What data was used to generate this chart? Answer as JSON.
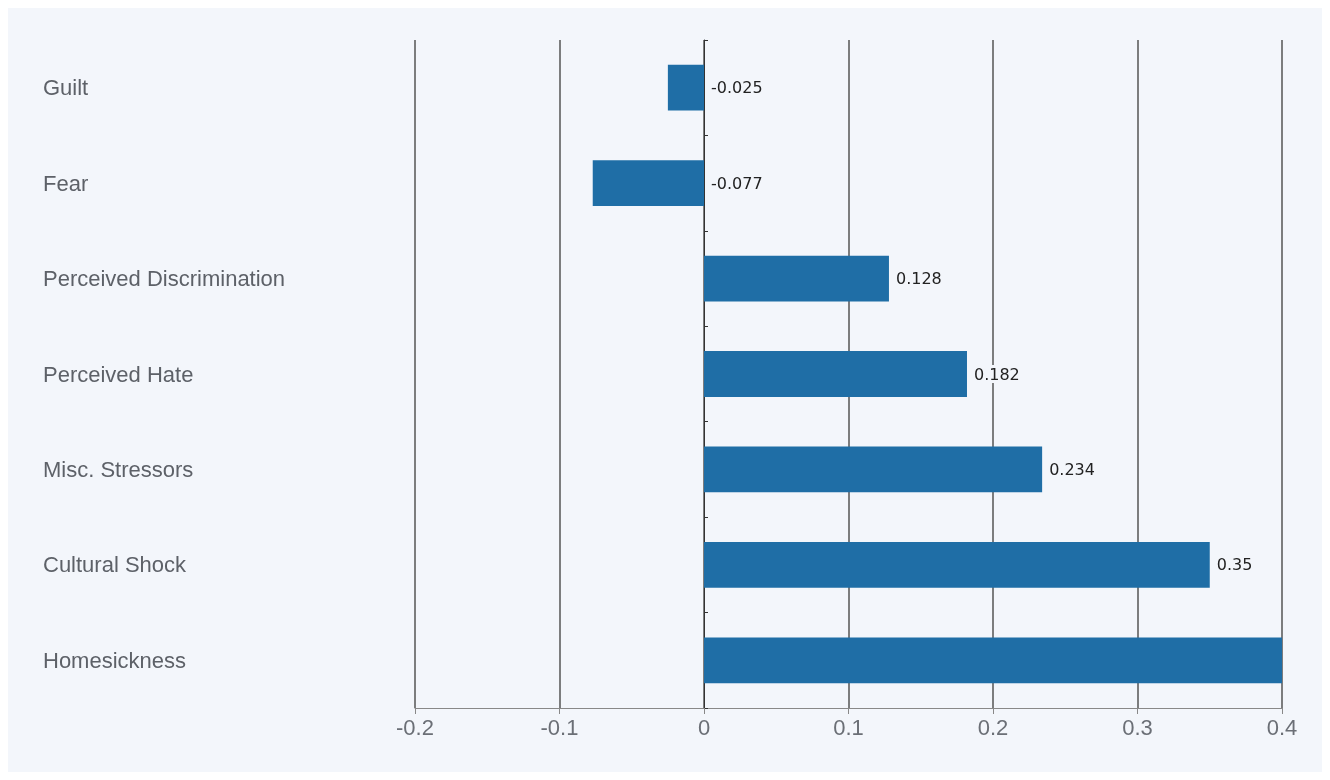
{
  "chart_data": {
    "type": "bar",
    "orientation": "horizontal",
    "categories": [
      "Guilt",
      "Fear",
      "Perceived Discrimination",
      "Perceived Hate",
      "Misc. Stressors",
      "Cultural Shock",
      "Homesickness"
    ],
    "values": [
      -0.025,
      -0.077,
      0.128,
      0.182,
      0.234,
      0.35,
      0.4
    ],
    "value_labels": [
      "-0.025",
      "-0.077",
      "0.128",
      "0.182",
      "0.234",
      "0.35",
      null
    ],
    "color": "#1f6ea6",
    "xlim": [
      -0.2,
      0.4
    ],
    "xticks": [
      -0.2,
      -0.1,
      0,
      0.1,
      0.2,
      0.3,
      0.4
    ],
    "grid": "x"
  }
}
